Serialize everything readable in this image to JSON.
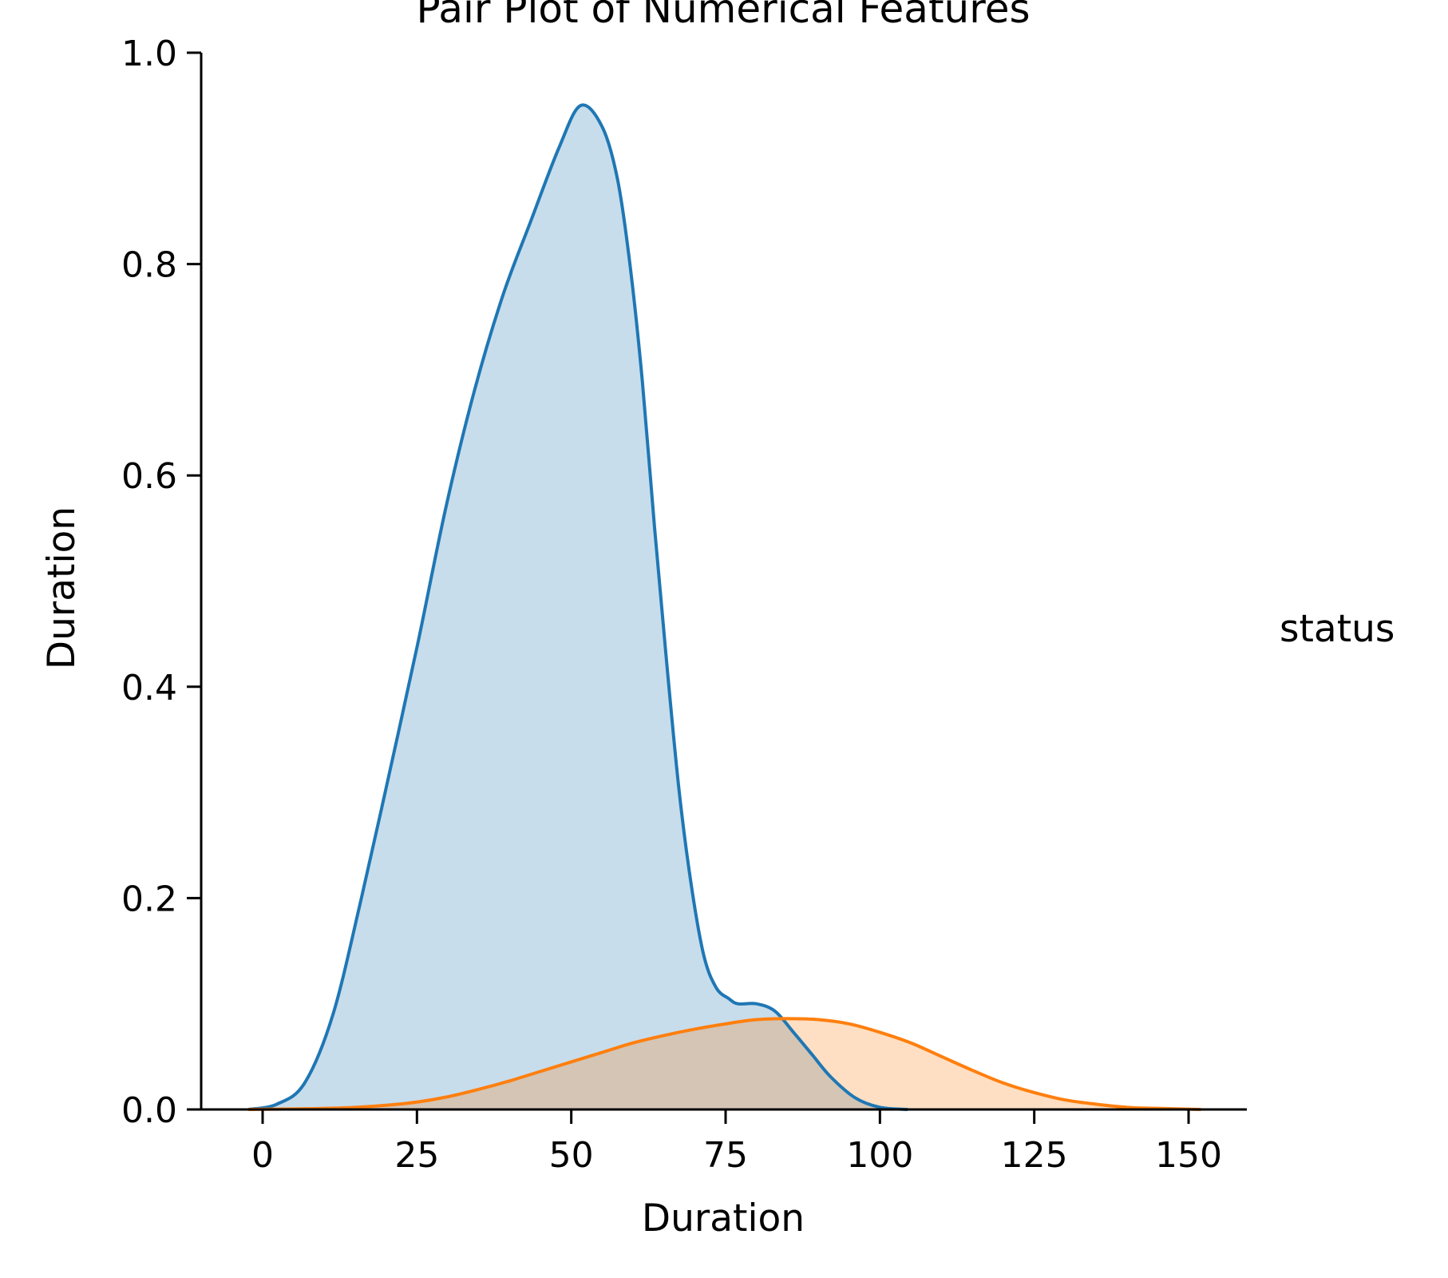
{
  "chart_data": {
    "type": "area",
    "title": "Pair Plot of Numerical Features",
    "xlabel": "Duration",
    "ylabel": "Duration",
    "xlim": [
      -10,
      160
    ],
    "ylim": [
      0,
      1.0
    ],
    "x_ticks": [
      0,
      25,
      50,
      75,
      100,
      125,
      150
    ],
    "y_ticks": [
      0.0,
      0.2,
      0.4,
      0.6,
      0.8,
      1.0
    ],
    "x_tick_labels": [
      "0",
      "25",
      "50",
      "75",
      "100",
      "125",
      "150"
    ],
    "y_tick_labels": [
      "0.0",
      "0.2",
      "0.4",
      "0.6",
      "0.8",
      "1.0"
    ],
    "grid": false,
    "legend": {
      "title": "status",
      "position": "right"
    },
    "series": [
      {
        "color": "#1f77b4",
        "x": [
          -2.3,
          2.3,
          6.8,
          11.4,
          16,
          20.6,
          25.1,
          29.7,
          34.3,
          38.9,
          43.4,
          48,
          51.5,
          55,
          57.5,
          59.5,
          61.5,
          63.5,
          65.5,
          67.5,
          69.5,
          71.5,
          73.5,
          75.5,
          77,
          80,
          83,
          86,
          89,
          92,
          96,
          100,
          104.5
        ],
        "y": [
          0.0,
          0.005,
          0.025,
          0.09,
          0.2,
          0.32,
          0.44,
          0.57,
          0.68,
          0.77,
          0.84,
          0.91,
          0.95,
          0.93,
          0.88,
          0.8,
          0.69,
          0.55,
          0.42,
          0.3,
          0.21,
          0.145,
          0.115,
          0.105,
          0.1,
          0.1,
          0.093,
          0.073,
          0.052,
          0.031,
          0.011,
          0.002,
          0.0
        ]
      },
      {
        "color": "#ff7f0e",
        "x": [
          -2.3,
          5,
          10,
          15,
          20,
          25,
          30,
          35,
          40,
          45,
          50,
          55,
          60,
          65,
          70,
          75,
          80,
          85,
          90,
          95,
          100,
          105,
          110,
          115,
          120,
          125,
          130,
          135,
          140,
          145,
          152
        ],
        "y": [
          0.0,
          0.0005,
          0.001,
          0.002,
          0.004,
          0.007,
          0.012,
          0.019,
          0.027,
          0.036,
          0.045,
          0.054,
          0.063,
          0.07,
          0.076,
          0.081,
          0.085,
          0.086,
          0.085,
          0.081,
          0.073,
          0.063,
          0.05,
          0.037,
          0.025,
          0.016,
          0.009,
          0.005,
          0.002,
          0.001,
          0.0
        ]
      }
    ]
  }
}
